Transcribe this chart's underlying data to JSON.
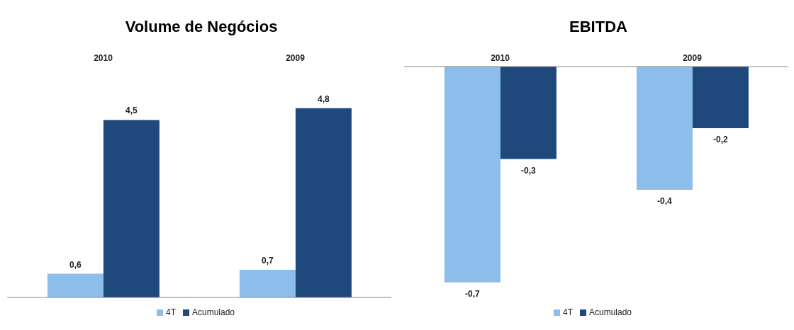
{
  "chart_data": [
    {
      "type": "bar",
      "title": "Volume de Negócios",
      "categories": [
        "2010",
        "2009"
      ],
      "series": [
        {
          "name": "4T",
          "color": "#8dbdea",
          "values": [
            0.6,
            0.7
          ],
          "value_labels": [
            "0,6",
            "0,7"
          ]
        },
        {
          "name": "Acumulado",
          "color": "#1f497d",
          "values": [
            4.5,
            4.8
          ],
          "value_labels": [
            "4,5",
            "4,8"
          ]
        }
      ],
      "legend": "bottom",
      "grid": false
    },
    {
      "type": "bar",
      "title": "EBITDA",
      "categories": [
        "2010",
        "2009"
      ],
      "series": [
        {
          "name": "4T",
          "color": "#8dbdea",
          "values": [
            -0.7,
            -0.4
          ],
          "value_labels": [
            "-0,7",
            "-0,4"
          ]
        },
        {
          "name": "Acumulado",
          "color": "#1f497d",
          "values": [
            -0.3,
            -0.2
          ],
          "value_labels": [
            "-0,3",
            "-0,2"
          ]
        }
      ],
      "legend": "bottom",
      "grid": false
    }
  ]
}
